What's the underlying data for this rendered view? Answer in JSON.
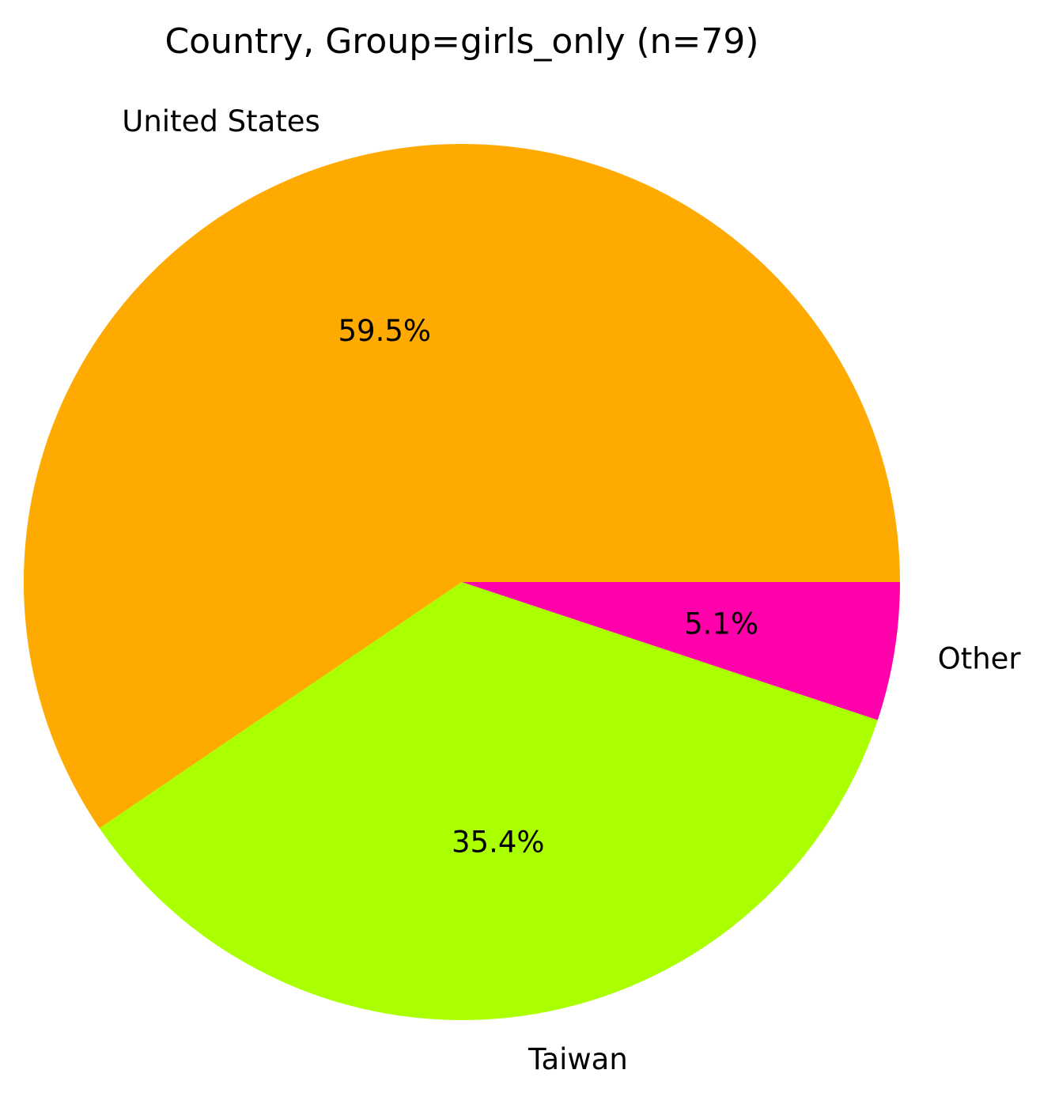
{
  "chart_data": {
    "type": "pie",
    "title": "Country, Group=girls_only (n=79)",
    "start_angle_deg": 0,
    "direction": "counterclockwise",
    "legend": "none",
    "slices": [
      {
        "label": "United States",
        "value": 59.5,
        "pct_label": "59.5%",
        "color": "#FFAA00"
      },
      {
        "label": "Taiwan",
        "value": 35.4,
        "pct_label": "35.4%",
        "color": "#AAFF00"
      },
      {
        "label": "Other",
        "value": 5.1,
        "pct_label": "5.1%",
        "color": "#FF00AA"
      }
    ]
  }
}
